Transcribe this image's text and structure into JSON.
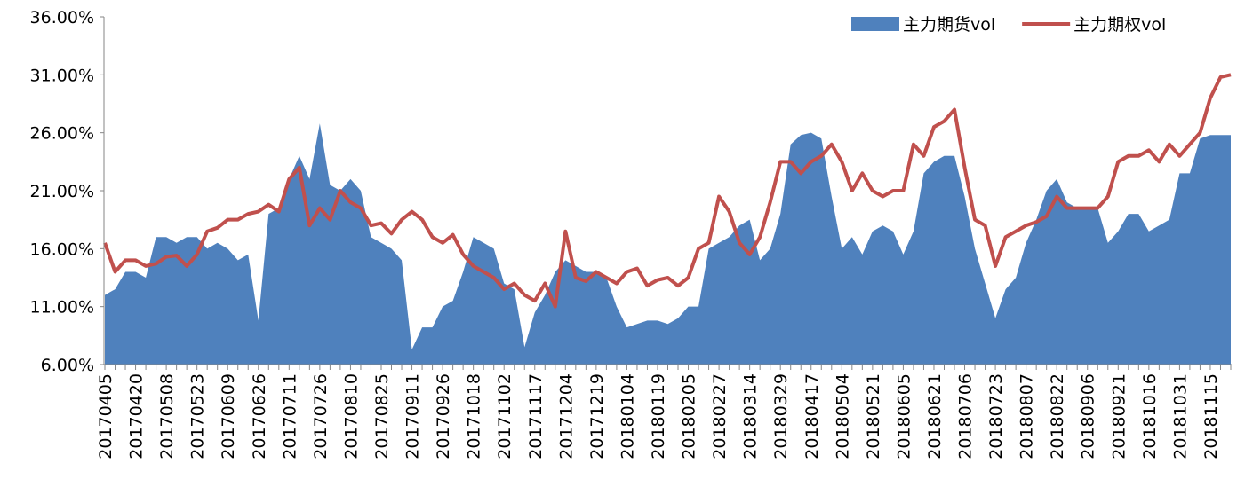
{
  "chart_data": {
    "type": "area-line",
    "categories": [
      "20170405",
      null,
      null,
      "20170420",
      null,
      null,
      "20170508",
      null,
      null,
      "20170523",
      null,
      null,
      "20170609",
      null,
      null,
      "20170626",
      null,
      null,
      "20170711",
      null,
      null,
      "20170726",
      null,
      null,
      "20170810",
      null,
      null,
      "20170825",
      null,
      null,
      "20170911",
      null,
      null,
      "20170926",
      null,
      null,
      "20171018",
      null,
      null,
      "20171102",
      null,
      null,
      "20171117",
      null,
      null,
      "20171204",
      null,
      null,
      "20171219",
      null,
      null,
      "20180104",
      null,
      null,
      "20180119",
      null,
      null,
      "20180205",
      null,
      null,
      "20180227",
      null,
      null,
      "20180314",
      null,
      null,
      "20180329",
      null,
      null,
      "20180417",
      null,
      null,
      "20180504",
      null,
      null,
      "20180521",
      null,
      null,
      "20180605",
      null,
      null,
      "20180621",
      null,
      null,
      "20180706",
      null,
      null,
      "20180723",
      null,
      null,
      "20180807",
      null,
      null,
      "20180822",
      null,
      null,
      "20180906",
      null,
      null,
      "20180921",
      null,
      null,
      "20181016",
      null,
      null,
      "20181031",
      null,
      null,
      "20181115",
      null,
      null
    ],
    "series": [
      {
        "name": "主力期货vol",
        "kind": "area",
        "color": "#4f81bd",
        "values": [
          12,
          12.5,
          14,
          14,
          13.5,
          17,
          17,
          16.5,
          17,
          17,
          16,
          16.5,
          16,
          15,
          15.5,
          9.8,
          19,
          19.5,
          22,
          24,
          22,
          26.8,
          21.5,
          21,
          22,
          21,
          17,
          16.5,
          16,
          15,
          7.3,
          9.2,
          9.2,
          11,
          11.5,
          14,
          17,
          16.5,
          16,
          13,
          12.5,
          7.5,
          10.5,
          12,
          14,
          15,
          14.5,
          14,
          14,
          13.5,
          11,
          9.2,
          9.5,
          9.8,
          9.8,
          9.5,
          10,
          11,
          11,
          16,
          16.5,
          17,
          18,
          18.5,
          15,
          16,
          19,
          25,
          25.8,
          26,
          25.5,
          20.5,
          16,
          17,
          15.5,
          17.5,
          18,
          17.5,
          15.5,
          17.5,
          22.5,
          23.5,
          24,
          24,
          20.5,
          16,
          13,
          10,
          12.5,
          13.5,
          16.5,
          18.5,
          21,
          22,
          20,
          19.5,
          19.5,
          19.5,
          16.5,
          17.5,
          19,
          19,
          17.5,
          18,
          18.5,
          22.5,
          22.5,
          25.5,
          25.8,
          25.8,
          25.8
        ]
      },
      {
        "name": "主力期权vol",
        "kind": "line",
        "color": "#c0504d",
        "values": [
          16.5,
          14,
          15,
          15,
          14.5,
          14.7,
          15.3,
          15.4,
          14.5,
          15.5,
          17.5,
          17.8,
          18.5,
          18.5,
          19,
          19.2,
          19.8,
          19.2,
          22,
          23,
          18,
          19.5,
          18.5,
          21,
          20,
          19.5,
          18,
          18.2,
          17.3,
          18.5,
          19.2,
          18.5,
          17,
          16.5,
          17.2,
          15.5,
          14.5,
          14,
          13.5,
          12.5,
          13,
          12,
          11.5,
          13,
          11,
          17.5,
          13.5,
          13.2,
          14,
          13.5,
          13,
          14,
          14.3,
          12.8,
          13.3,
          13.5,
          12.8,
          13.5,
          16,
          16.5,
          20.5,
          19.2,
          16.5,
          15.5,
          17,
          20,
          23.5,
          23.5,
          22.5,
          23.5,
          24,
          25,
          23.5,
          21,
          22.5,
          21,
          20.5,
          21,
          21,
          25,
          24,
          26.5,
          27,
          28,
          23,
          18.5,
          18,
          14.5,
          17,
          17.5,
          18,
          18.3,
          18.8,
          20.5,
          19.5,
          19.5,
          19.5,
          19.5,
          20.5,
          23.5,
          24,
          24,
          24.5,
          23.5,
          25,
          24,
          25,
          26,
          29,
          30.8,
          31
        ]
      }
    ],
    "ylim": [
      6,
      36
    ],
    "yticks": [
      {
        "value": 6,
        "label": "6.00%"
      },
      {
        "value": 11,
        "label": "11.00%"
      },
      {
        "value": 16,
        "label": "16.00%"
      },
      {
        "value": 21,
        "label": "21.00%"
      },
      {
        "value": 26,
        "label": "26.00%"
      },
      {
        "value": 31,
        "label": "31.00%"
      },
      {
        "value": 36,
        "label": "36.00%"
      }
    ],
    "legend": "upper right",
    "grid": false
  }
}
